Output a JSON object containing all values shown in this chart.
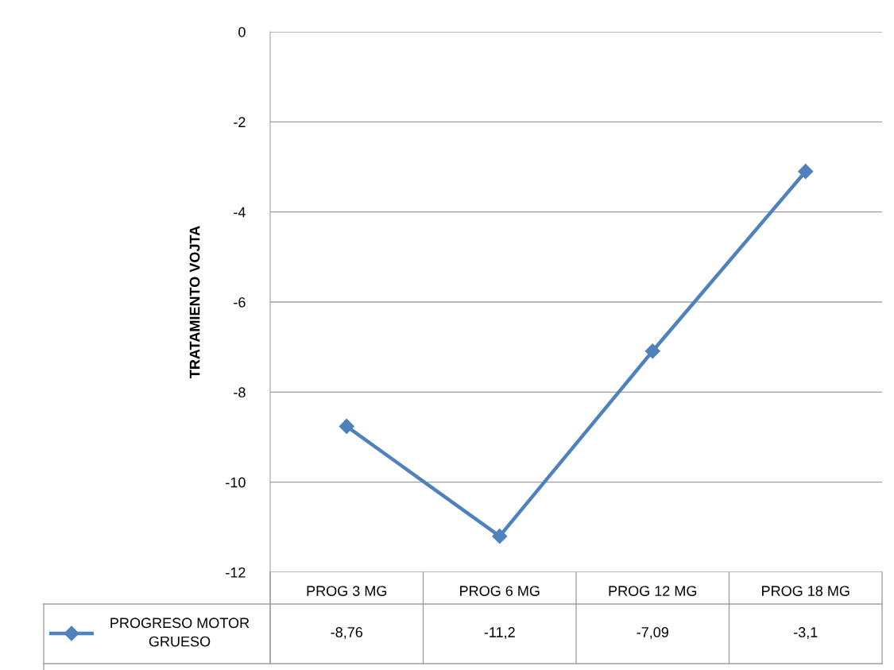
{
  "chart_data": {
    "type": "line",
    "ylabel": "TRATAMIENTO VOJTA",
    "categories": [
      "PROG 3 MG",
      "PROG 6 MG",
      "PROG 12 MG",
      "PROG 18 MG"
    ],
    "series": [
      {
        "name": "PROGRESO MOTOR GRUESO",
        "color": "#4f81bd",
        "values": [
          -8.76,
          -11.2,
          -7.09,
          -3.1
        ],
        "value_labels": [
          "-8,76",
          "-11,2",
          "-7,09",
          "-3,1"
        ]
      }
    ],
    "ylim": [
      -12,
      0
    ],
    "yticks": [
      -12,
      -10,
      -8,
      -6,
      -4,
      -2,
      0
    ],
    "grid": "y",
    "marker": "diamond",
    "line_style": "solid"
  }
}
